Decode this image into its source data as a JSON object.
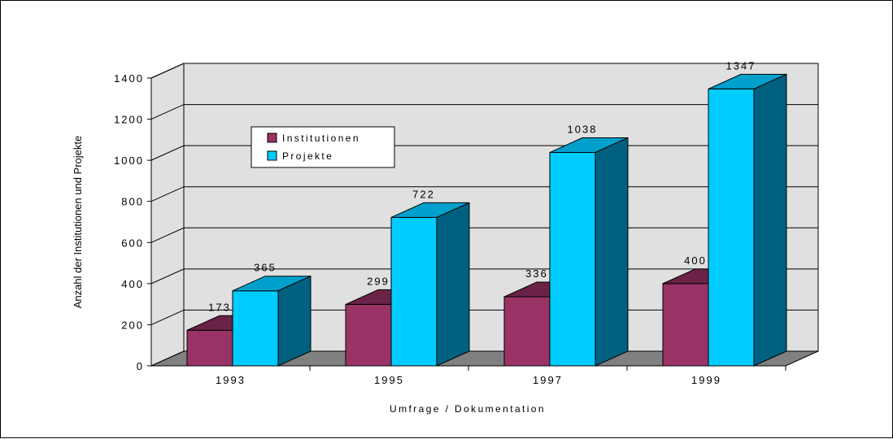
{
  "chart_data": {
    "type": "bar",
    "categories": [
      "1993",
      "1995",
      "1997",
      "1999"
    ],
    "series": [
      {
        "name": "Institutionen",
        "values": [
          173,
          299,
          336,
          400
        ]
      },
      {
        "name": "Projekte",
        "values": [
          365,
          722,
          1038,
          1347
        ]
      }
    ],
    "xlabel": "Umfrage / Dokumentation",
    "ylabel": "Anzahl der Institutionen und Projekte",
    "ylim": [
      0,
      1400
    ],
    "yticks": [
      0,
      200,
      400,
      600,
      800,
      1000,
      1200,
      1400
    ],
    "grid": true,
    "legend_position": "top-left",
    "three_d": true,
    "colors": {
      "Institutionen": {
        "front": "#993366",
        "top": "#6a2346",
        "side": "#5b1d3b"
      },
      "Projekte": {
        "front": "#00ccff",
        "top": "#00a0cc",
        "side": "#006080"
      },
      "wall": "#e0e0e0",
      "floor": "#808080"
    }
  }
}
